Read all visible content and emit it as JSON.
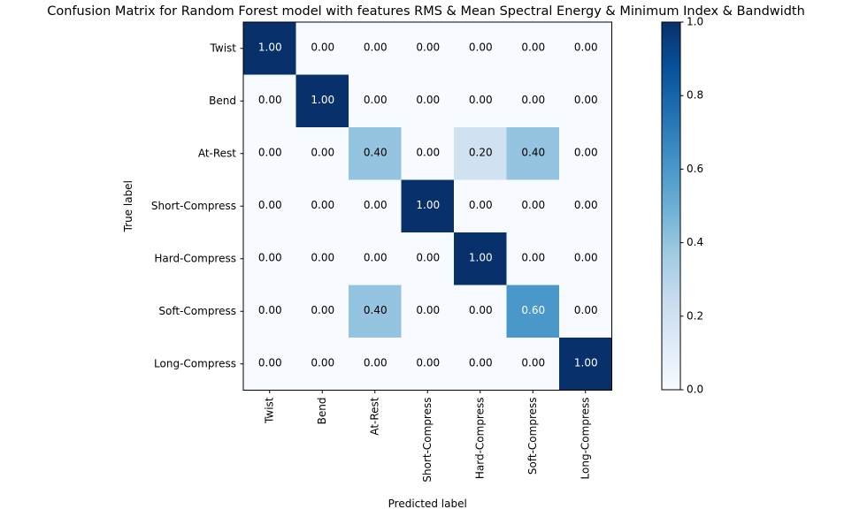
{
  "chart_data": {
    "type": "heatmap",
    "title": "Confusion Matrix for Random Forest model with features RMS & Mean Spectral Energy & Minimum Index & Bandwidth",
    "xlabel": "Predicted label",
    "ylabel": "True label",
    "x_categories": [
      "Twist",
      "Bend",
      "At-Rest",
      "Short-Compress",
      "Hard-Compress",
      "Soft-Compress",
      "Long-Compress"
    ],
    "y_categories": [
      "Twist",
      "Bend",
      "At-Rest",
      "Short-Compress",
      "Hard-Compress",
      "Soft-Compress",
      "Long-Compress"
    ],
    "values": [
      [
        1.0,
        0.0,
        0.0,
        0.0,
        0.0,
        0.0,
        0.0
      ],
      [
        0.0,
        1.0,
        0.0,
        0.0,
        0.0,
        0.0,
        0.0
      ],
      [
        0.0,
        0.0,
        0.4,
        0.0,
        0.2,
        0.4,
        0.0
      ],
      [
        0.0,
        0.0,
        0.0,
        1.0,
        0.0,
        0.0,
        0.0
      ],
      [
        0.0,
        0.0,
        0.0,
        0.0,
        1.0,
        0.0,
        0.0
      ],
      [
        0.0,
        0.0,
        0.4,
        0.0,
        0.0,
        0.6,
        0.0
      ],
      [
        0.0,
        0.0,
        0.0,
        0.0,
        0.0,
        0.0,
        1.0
      ]
    ],
    "value_format": "0.00",
    "colormap": "Blues",
    "colormap_light": "#f7fbff",
    "colormap_dark": "#08306b",
    "colorbar": {
      "range": [
        0.0,
        1.0
      ],
      "ticks": [
        0.0,
        0.2,
        0.4,
        0.6,
        0.8,
        1.0
      ],
      "tick_labels": [
        "0.0",
        "0.2",
        "0.4",
        "0.6",
        "0.8",
        "1.0"
      ]
    },
    "grid": false
  }
}
